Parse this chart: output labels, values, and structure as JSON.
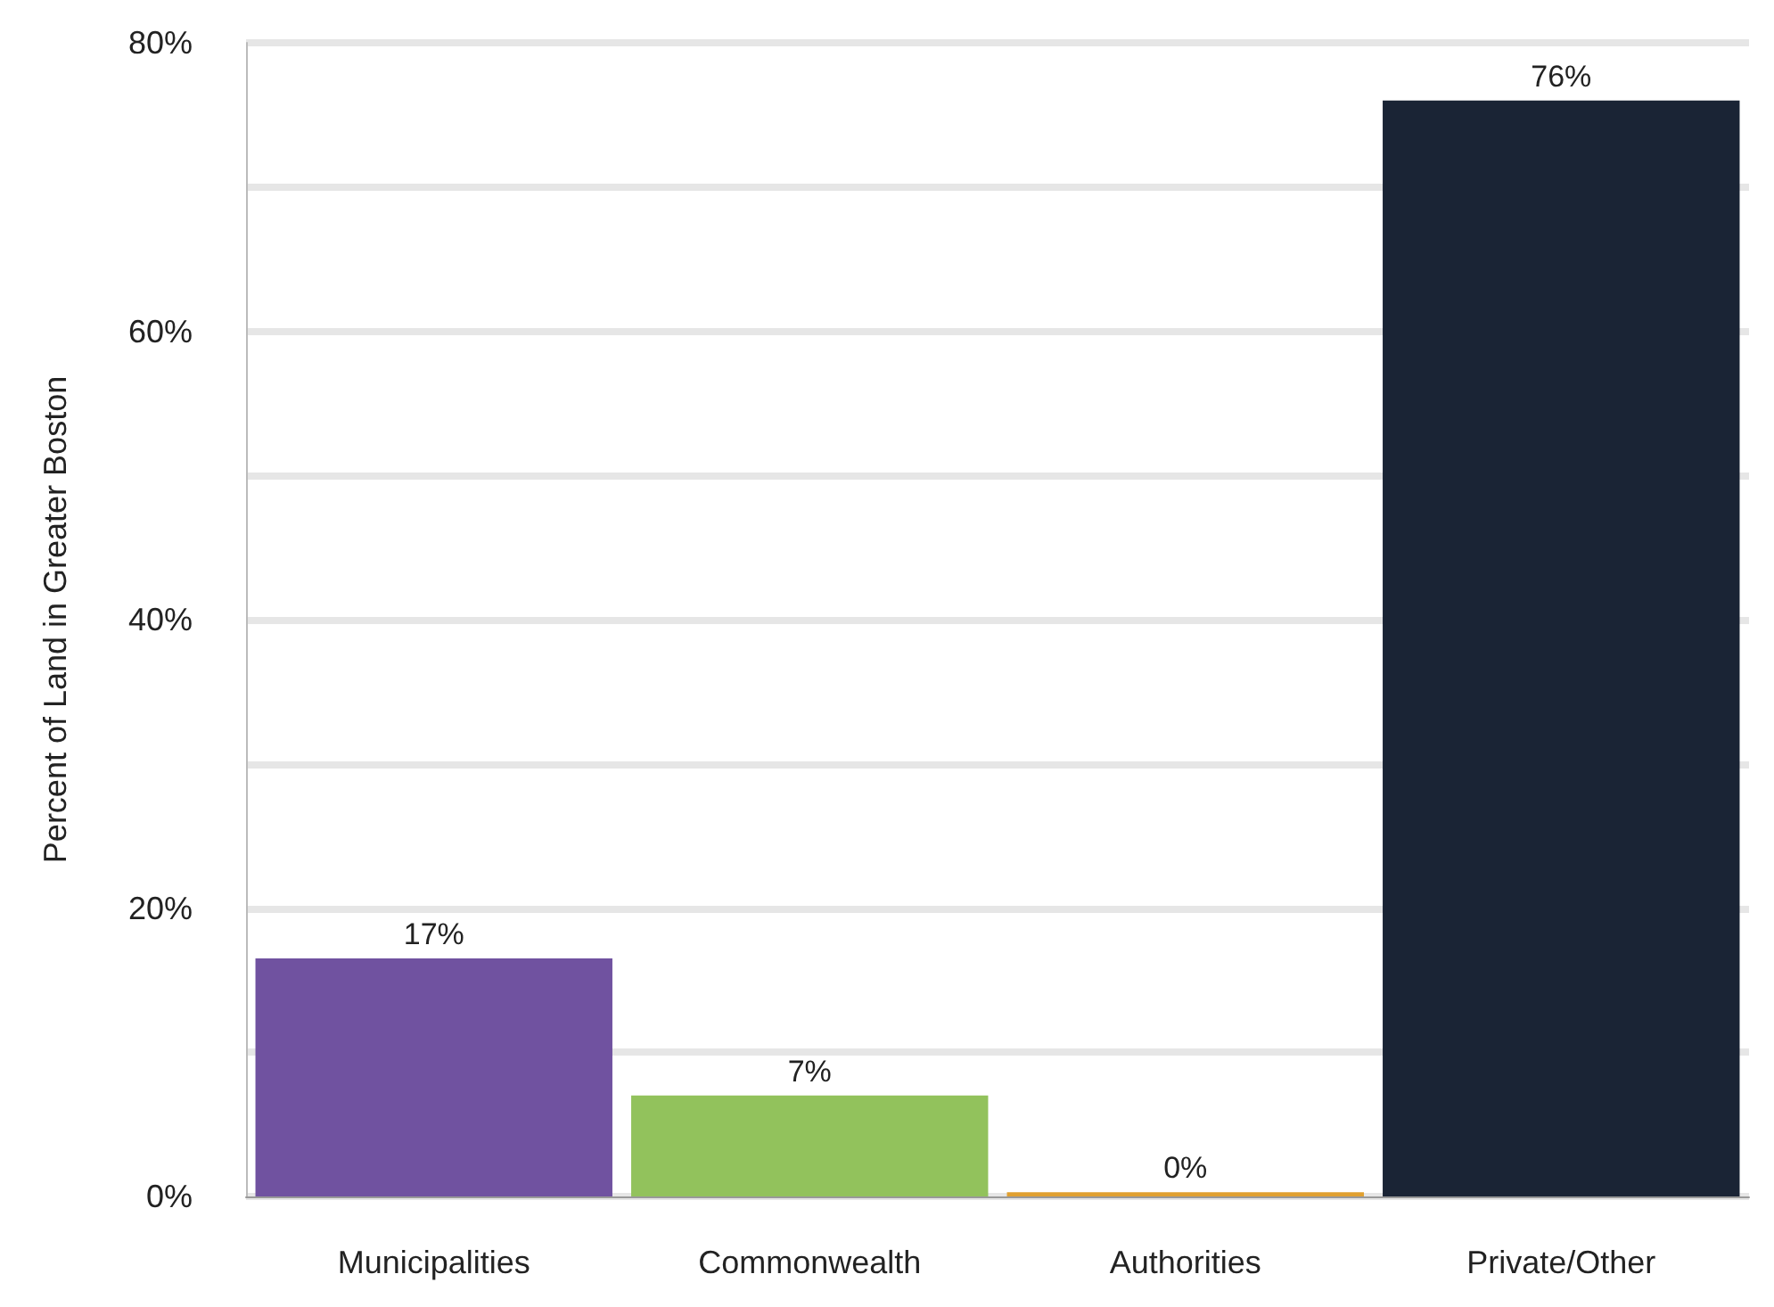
{
  "chart_data": {
    "type": "bar",
    "ylabel": "Percent of Land in Greater Boston",
    "categories": [
      "Municipalities",
      "Commonwealth",
      "Authorities",
      "Private/Other"
    ],
    "values": [
      16.5,
      7,
      0.3,
      76
    ],
    "colors": [
      "#7052a0",
      "#92c25c",
      "#e0a030",
      "#1a2435"
    ],
    "value_labels": [
      "17%",
      "7%",
      "0%",
      "76%"
    ],
    "ylim": [
      0,
      80
    ],
    "yticks": [
      {
        "value": 0,
        "label": "0%"
      },
      {
        "value": 10,
        "label": null
      },
      {
        "value": 20,
        "label": "20%"
      },
      {
        "value": 30,
        "label": null
      },
      {
        "value": 40,
        "label": "40%"
      },
      {
        "value": 50,
        "label": null
      },
      {
        "value": 60,
        "label": "60%"
      },
      {
        "value": 70,
        "label": null
      },
      {
        "value": 80,
        "label": "80%"
      }
    ],
    "grid": "y"
  }
}
